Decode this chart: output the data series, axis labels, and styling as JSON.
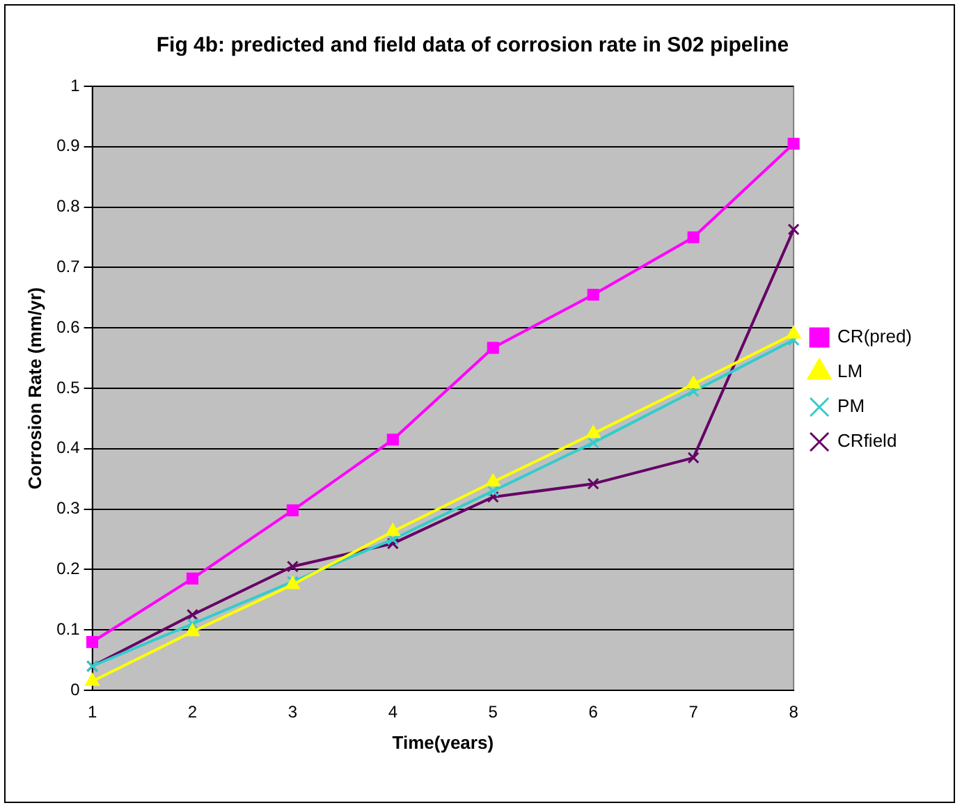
{
  "chart_data": {
    "type": "line",
    "title": "Fig 4b: predicted and field data of corrosion rate in S02 pipeline",
    "xlabel": "Time(years)",
    "ylabel": "Corrosion Rate (mm/yr)",
    "categories": [
      "1",
      "2",
      "3",
      "4",
      "5",
      "6",
      "7",
      "8"
    ],
    "ylim": [
      0,
      1
    ],
    "yticks": [
      0,
      0.1,
      0.2,
      0.3,
      0.4,
      0.5,
      0.6,
      0.7,
      0.8,
      0.9,
      1
    ],
    "grid": "y",
    "legend": "right",
    "line_style": "solid",
    "series": [
      {
        "name": "CR(pred)",
        "color": "#ff00ff",
        "marker": "square",
        "values": [
          0.08,
          0.185,
          0.298,
          0.415,
          0.567,
          0.655,
          0.75,
          0.905
        ]
      },
      {
        "name": "LM",
        "color": "#ffff00",
        "marker": "triangle",
        "values": [
          0.015,
          0.097,
          0.175,
          0.263,
          0.345,
          0.425,
          0.507,
          0.59
        ]
      },
      {
        "name": "PM",
        "color": "#33cccc",
        "marker": "cross",
        "values": [
          0.04,
          0.11,
          0.18,
          0.25,
          0.33,
          0.41,
          0.495,
          0.58
        ]
      },
      {
        "name": "CRfield",
        "color": "#660066",
        "marker": "cross",
        "values": [
          0.04,
          0.125,
          0.205,
          0.243,
          0.32,
          0.342,
          0.385,
          0.763
        ]
      }
    ]
  }
}
